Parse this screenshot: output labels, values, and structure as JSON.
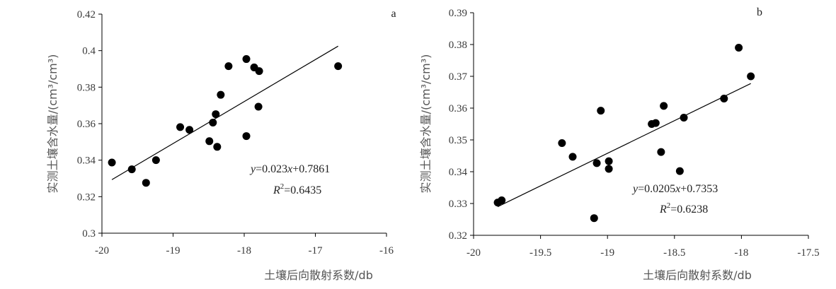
{
  "chart_data": [
    {
      "type": "scatter",
      "panel_label": "a",
      "xlabel": "土壤后向散射系数/db",
      "ylabel": "实测土壤含水量/(cm³/cm³)",
      "xlim": [
        -20,
        -16
      ],
      "ylim": [
        0.3,
        0.42
      ],
      "xticks": [
        -20,
        -19,
        -18,
        -17,
        -16
      ],
      "yticks": [
        0.3,
        0.32,
        0.34,
        0.36,
        0.38,
        0.4,
        0.42
      ],
      "x_tick_labels": [
        "-20",
        "-19",
        "-18",
        "-17",
        "-16"
      ],
      "y_tick_labels": [
        "0.3",
        "0.32",
        "0.34",
        "0.36",
        "0.38",
        "0.4",
        "0.42"
      ],
      "grid": false,
      "points": [
        {
          "x": -19.86,
          "y": 0.3387
        },
        {
          "x": -19.58,
          "y": 0.335
        },
        {
          "x": -19.38,
          "y": 0.3276
        },
        {
          "x": -19.24,
          "y": 0.34
        },
        {
          "x": -18.9,
          "y": 0.3581
        },
        {
          "x": -18.77,
          "y": 0.3566
        },
        {
          "x": -18.49,
          "y": 0.3504
        },
        {
          "x": -18.44,
          "y": 0.3606
        },
        {
          "x": -18.4,
          "y": 0.3652
        },
        {
          "x": -18.38,
          "y": 0.3473
        },
        {
          "x": -18.33,
          "y": 0.3758
        },
        {
          "x": -18.22,
          "y": 0.3915
        },
        {
          "x": -17.97,
          "y": 0.3532
        },
        {
          "x": -17.97,
          "y": 0.3954
        },
        {
          "x": -17.86,
          "y": 0.3908
        },
        {
          "x": -17.8,
          "y": 0.3693
        },
        {
          "x": -17.79,
          "y": 0.3888
        },
        {
          "x": -16.68,
          "y": 0.3915
        }
      ],
      "trendline": {
        "slope": 0.023,
        "intercept": 0.7861,
        "x_range": [
          -19.86,
          -16.68
        ]
      },
      "equation": {
        "lhs": "y",
        "rhs_a": "=0.023",
        "var": "x",
        "rhs_b": "+0.7861"
      },
      "r2": {
        "symbol": "R",
        "power": "2",
        "value": "=0.6435"
      }
    },
    {
      "type": "scatter",
      "panel_label": "b",
      "xlabel": "土壤后向散射系数/db",
      "ylabel": "实测土壤含水量/(cm³/cm³)",
      "xlim": [
        -20,
        -17.5
      ],
      "ylim": [
        0.32,
        0.39
      ],
      "xticks": [
        -20,
        -19.5,
        -19,
        -18.5,
        -18,
        -17.5
      ],
      "yticks": [
        0.32,
        0.33,
        0.34,
        0.35,
        0.36,
        0.37,
        0.38,
        0.39
      ],
      "x_tick_labels": [
        "-20",
        "-19.5",
        "-19",
        "-18.5",
        "-18",
        "-17.5"
      ],
      "y_tick_labels": [
        "0.32",
        "0.33",
        "0.34",
        "0.35",
        "0.36",
        "0.37",
        "0.38",
        "0.39"
      ],
      "grid": false,
      "points": [
        {
          "x": -19.82,
          "y": 0.3303
        },
        {
          "x": -19.79,
          "y": 0.331
        },
        {
          "x": -19.34,
          "y": 0.349
        },
        {
          "x": -19.26,
          "y": 0.3447
        },
        {
          "x": -19.1,
          "y": 0.3254
        },
        {
          "x": -19.08,
          "y": 0.3427
        },
        {
          "x": -19.05,
          "y": 0.3592
        },
        {
          "x": -18.99,
          "y": 0.3433
        },
        {
          "x": -18.99,
          "y": 0.3409
        },
        {
          "x": -18.67,
          "y": 0.355
        },
        {
          "x": -18.64,
          "y": 0.3553
        },
        {
          "x": -18.6,
          "y": 0.3462
        },
        {
          "x": -18.58,
          "y": 0.3607
        },
        {
          "x": -18.46,
          "y": 0.3402
        },
        {
          "x": -18.43,
          "y": 0.357
        },
        {
          "x": -18.13,
          "y": 0.363
        },
        {
          "x": -18.02,
          "y": 0.379
        },
        {
          "x": -17.93,
          "y": 0.37
        }
      ],
      "trendline": {
        "slope": 0.0205,
        "intercept": 0.7353,
        "x_range": [
          -19.82,
          -17.93
        ]
      },
      "equation": {
        "lhs": "y",
        "rhs_a": "=0.0205",
        "var": "x",
        "rhs_b": "+0.7353"
      },
      "r2": {
        "symbol": "R",
        "power": "2",
        "value": "=0.6238"
      }
    }
  ]
}
